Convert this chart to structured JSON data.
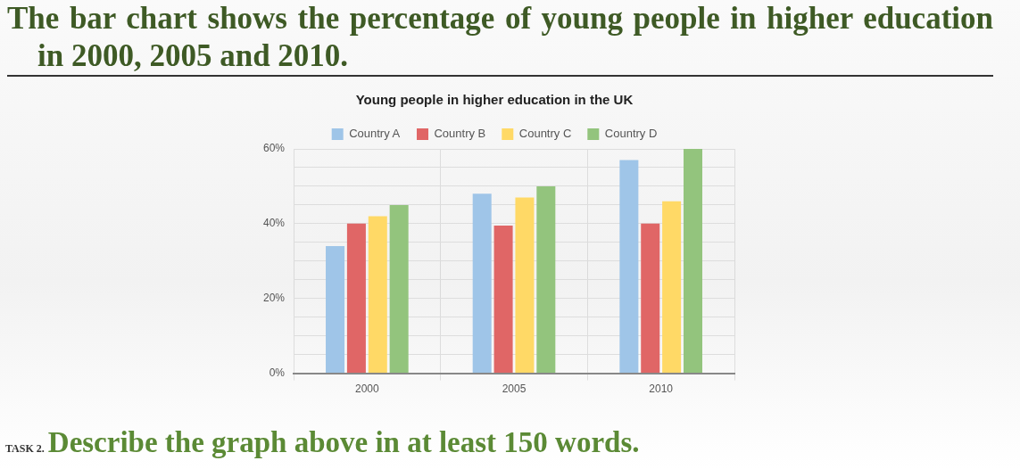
{
  "chart_data": {
    "type": "bar",
    "title": "The bar chart shows the percentage of young people in higher education in 2000, 2005 and 2010.",
    "subtitle": "Young people in higher education in the UK",
    "categories": [
      "2000",
      "2005",
      "2010"
    ],
    "series": [
      {
        "name": "Country A",
        "color": "#9fc5e8",
        "values": [
          34,
          48,
          57
        ]
      },
      {
        "name": "Country B",
        "color": "#e06666",
        "values": [
          40,
          39.5,
          40
        ]
      },
      {
        "name": "Country C",
        "color": "#ffd966",
        "values": [
          42,
          47,
          46
        ]
      },
      {
        "name": "Country D",
        "color": "#93c47d",
        "values": [
          45,
          50,
          60
        ]
      }
    ],
    "ylim": [
      0,
      60
    ],
    "yticks": [
      {
        "value": 0,
        "label": "0%"
      },
      {
        "value": 5,
        "label": null
      },
      {
        "value": 10,
        "label": null
      },
      {
        "value": 15,
        "label": null
      },
      {
        "value": 20,
        "label": "20%"
      },
      {
        "value": 25,
        "label": null
      },
      {
        "value": 30,
        "label": null
      },
      {
        "value": 35,
        "label": null
      },
      {
        "value": 40,
        "label": "40%"
      },
      {
        "value": 45,
        "label": null
      },
      {
        "value": 50,
        "label": null
      },
      {
        "value": 55,
        "label": null
      },
      {
        "value": 60,
        "label": "60%"
      }
    ],
    "grid": true,
    "legend": "top",
    "annotations": [
      "TASK 2.",
      "Describe the graph above in at least 150 words."
    ]
  }
}
